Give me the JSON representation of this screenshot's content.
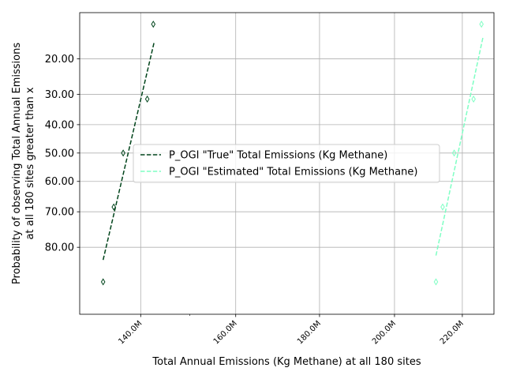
{
  "chart_data": {
    "type": "scatter",
    "title": "",
    "xlabel": "Total Annual Emissions (Kg Methane) at all 180 sites",
    "ylabel_lines": [
      "Probability of observing Total Annual Emissions",
      "at all 180 sites greater than x"
    ],
    "x_scale": "log",
    "y_scale": "normal-probability",
    "x_ticks": [
      {
        "value": 140000000,
        "label": "140.0M"
      },
      {
        "value": 160000000,
        "label": "160.0M"
      },
      {
        "value": 180000000,
        "label": "180.0M"
      },
      {
        "value": 200000000,
        "label": "200.0M"
      },
      {
        "value": 220000000,
        "label": "220.0M"
      }
    ],
    "x_minor_ticks": [
      150000000
    ],
    "y_ticks": [
      {
        "value": 20,
        "label": "20.00"
      },
      {
        "value": 30,
        "label": "30.00"
      },
      {
        "value": 40,
        "label": "40.00"
      },
      {
        "value": 50,
        "label": "50.00"
      },
      {
        "value": 60,
        "label": "60.00"
      },
      {
        "value": 70,
        "label": "70.00"
      },
      {
        "value": 80,
        "label": "80.00"
      }
    ],
    "xlim": [
      128500000,
      230000000
    ],
    "ylim_percent": [
      92.5,
      10.5
    ],
    "grid": true,
    "legend_position": "center-right",
    "series": [
      {
        "name": "P_OGI \"True\" Total Emissions (Kg Methane)",
        "color": "#00441b",
        "marker": "thin_diamond",
        "points": [
          {
            "x": 132800000,
            "y": 87.5
          },
          {
            "x": 134800000,
            "y": 68.5
          },
          {
            "x": 136600000,
            "y": 50.0
          },
          {
            "x": 141300000,
            "y": 31.5
          },
          {
            "x": 142500000,
            "y": 12.5
          }
        ],
        "fit_line": {
          "x": [
            132800000,
            142700000
          ],
          "y": [
            83.0,
            16.0
          ]
        }
      },
      {
        "name": "P_OGI \"Estimated\" Total Emissions (Kg Methane)",
        "color": "#7fffc4",
        "marker": "thin_diamond",
        "points": [
          {
            "x": 212000000,
            "y": 87.5
          },
          {
            "x": 214000000,
            "y": 68.5
          },
          {
            "x": 217500000,
            "y": 50.0
          },
          {
            "x": 223500000,
            "y": 31.5
          },
          {
            "x": 226000000,
            "y": 12.5
          }
        ],
        "fit_line": {
          "x": [
            212000000,
            226500000
          ],
          "y": [
            82.0,
            15.0
          ]
        }
      }
    ]
  }
}
